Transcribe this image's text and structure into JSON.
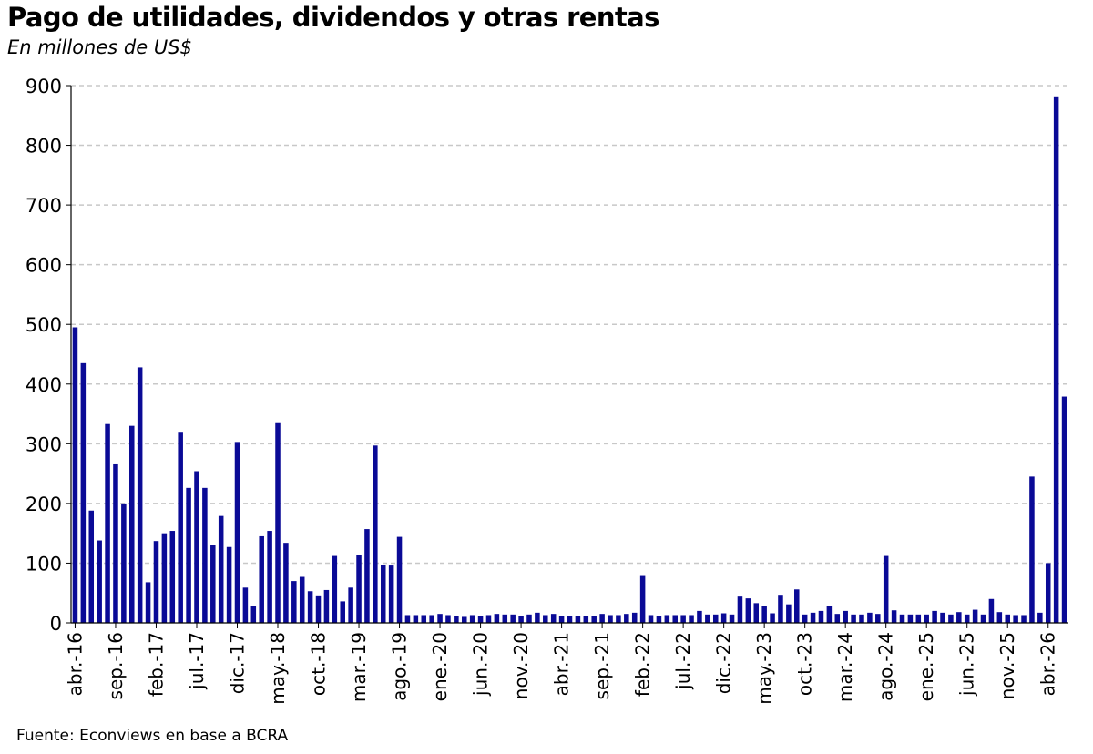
{
  "title": "Pago de utilidades, dividendos y otras rentas",
  "subtitle": "En millones de US$",
  "source": "Fuente: Econviews en base a BCRA",
  "colors": {
    "bar": "#0a0a96",
    "grid": "#c8c8c8",
    "axis": "#000000"
  },
  "chart_data": {
    "type": "bar",
    "title": "Pago de utilidades, dividendos y otras rentas",
    "subtitle": "En millones de US$",
    "xlabel": "",
    "ylabel": "",
    "ylim": [
      0,
      900
    ],
    "yticks": [
      0,
      100,
      200,
      300,
      400,
      500,
      600,
      700,
      800,
      900
    ],
    "grid": true,
    "legend": "none",
    "start_month": "abr.-16",
    "end_month": "abr.-26",
    "x_tick_labels": [
      "abr.-16",
      "sep.-16",
      "feb.-17",
      "jul.-17",
      "dic.-17",
      "may.-18",
      "oct.-18",
      "mar.-19",
      "ago.-19",
      "ene.-20",
      "jun.-20",
      "nov.-20",
      "abr.-21",
      "sep.-21",
      "feb.-22",
      "jul.-22",
      "dic.-22",
      "may.-23",
      "oct.-23",
      "mar.-24",
      "ago.-24",
      "ene.-25",
      "jun.-25",
      "nov.-25",
      "abr.-26"
    ],
    "values": [
      495,
      435,
      188,
      138,
      333,
      267,
      200,
      330,
      428,
      68,
      137,
      150,
      154,
      320,
      226,
      254,
      226,
      131,
      179,
      127,
      303,
      59,
      28,
      145,
      154,
      336,
      134,
      70,
      77,
      53,
      46,
      55,
      112,
      36,
      59,
      113,
      157,
      297,
      97,
      96,
      144,
      13,
      13,
      13,
      13,
      15,
      13,
      11,
      10,
      13,
      11,
      13,
      15,
      14,
      14,
      11,
      14,
      17,
      13,
      15,
      11,
      11,
      11,
      11,
      11,
      15,
      13,
      13,
      15,
      17,
      80,
      13,
      11,
      13,
      13,
      13,
      13,
      20,
      14,
      14,
      16,
      14,
      44,
      41,
      33,
      28,
      16,
      47,
      31,
      56,
      14,
      17,
      20,
      28,
      15,
      20,
      14,
      14,
      17,
      15,
      112,
      21,
      14,
      14,
      14,
      14,
      20,
      17,
      14,
      18,
      14,
      22,
      14,
      40,
      18,
      14,
      13,
      13,
      245,
      17,
      100,
      882,
      379
    ]
  }
}
